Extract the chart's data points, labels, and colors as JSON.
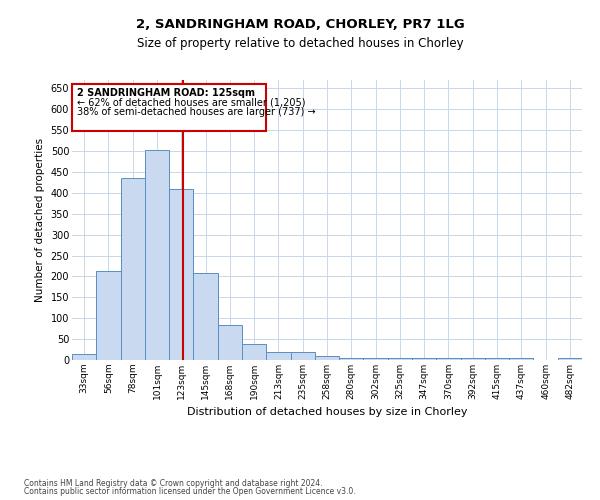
{
  "title_line1": "2, SANDRINGHAM ROAD, CHORLEY, PR7 1LG",
  "title_line2": "Size of property relative to detached houses in Chorley",
  "xlabel": "Distribution of detached houses by size in Chorley",
  "ylabel": "Number of detached properties",
  "footnote1": "Contains HM Land Registry data © Crown copyright and database right 2024.",
  "footnote2": "Contains public sector information licensed under the Open Government Licence v3.0.",
  "bar_color": "#c9d9f0",
  "bar_edge_color": "#5a8fc2",
  "grid_color": "#c8d8e8",
  "annotation_box_color": "#cc0000",
  "property_line_color": "#cc0000",
  "annotation_text_line1": "2 SANDRINGHAM ROAD: 125sqm",
  "annotation_text_line2": "← 62% of detached houses are smaller (1,205)",
  "annotation_text_line3": "38% of semi-detached houses are larger (737) →",
  "categories": [
    "33sqm",
    "56sqm",
    "78sqm",
    "101sqm",
    "123sqm",
    "145sqm",
    "168sqm",
    "190sqm",
    "213sqm",
    "235sqm",
    "258sqm",
    "280sqm",
    "302sqm",
    "325sqm",
    "347sqm",
    "370sqm",
    "392sqm",
    "415sqm",
    "437sqm",
    "460sqm",
    "482sqm"
  ],
  "values": [
    15,
    212,
    436,
    503,
    408,
    207,
    83,
    38,
    18,
    18,
    10,
    5,
    4,
    4,
    4,
    4,
    4,
    4,
    4,
    1,
    4
  ],
  "ylim": [
    0,
    670
  ],
  "yticks": [
    0,
    50,
    100,
    150,
    200,
    250,
    300,
    350,
    400,
    450,
    500,
    550,
    600,
    650
  ],
  "property_line_x": 4.09,
  "bg_color": "#ffffff"
}
